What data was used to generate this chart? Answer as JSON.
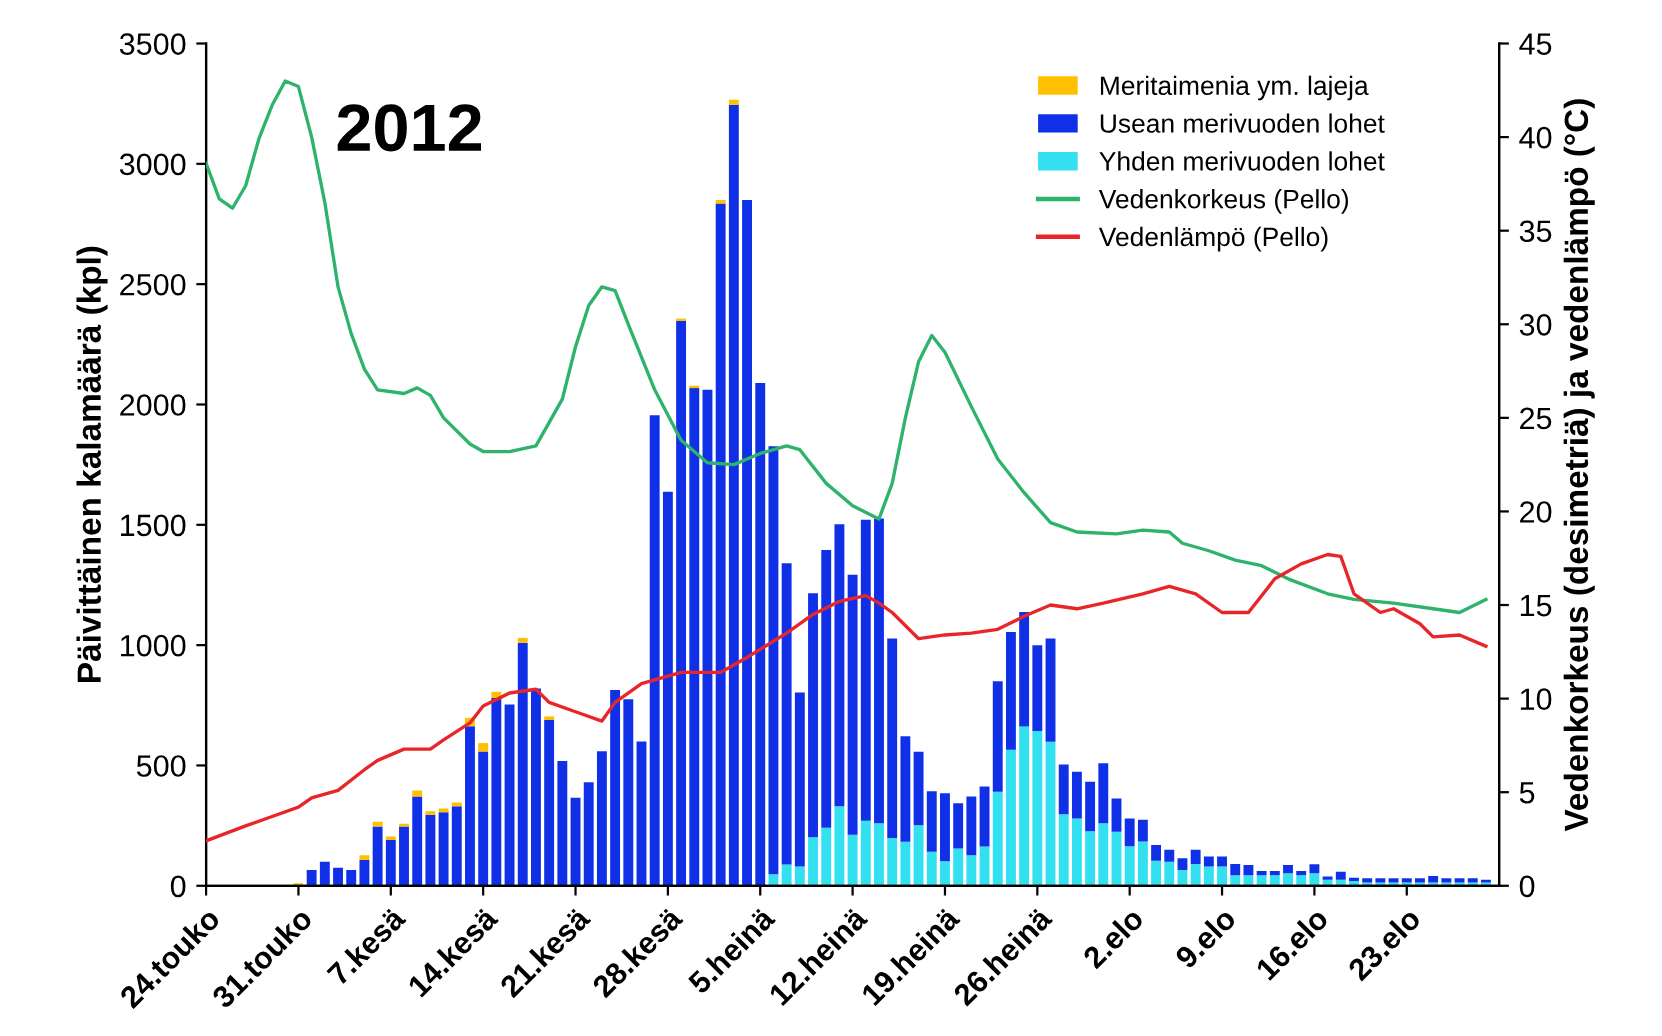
{
  "chart_data": {
    "type": "bar",
    "stacked": true,
    "title": "2012",
    "ylabel": "Päivittäinen kalamäärä (kpl)",
    "y2label": "Vedenkorkeus (desimetriä) ja vedenlämpö (°C)",
    "x": [
      "2012-05-24",
      "2012-05-25",
      "2012-05-26",
      "2012-05-27",
      "2012-05-28",
      "2012-05-29",
      "2012-05-30",
      "2012-05-31",
      "2012-06-01",
      "2012-06-02",
      "2012-06-03",
      "2012-06-04",
      "2012-06-05",
      "2012-06-06",
      "2012-06-07",
      "2012-06-08",
      "2012-06-09",
      "2012-06-10",
      "2012-06-11",
      "2012-06-12",
      "2012-06-13",
      "2012-06-14",
      "2012-06-15",
      "2012-06-16",
      "2012-06-17",
      "2012-06-18",
      "2012-06-19",
      "2012-06-20",
      "2012-06-21",
      "2012-06-22",
      "2012-06-23",
      "2012-06-24",
      "2012-06-25",
      "2012-06-26",
      "2012-06-27",
      "2012-06-28",
      "2012-06-29",
      "2012-06-30",
      "2012-07-01",
      "2012-07-02",
      "2012-07-03",
      "2012-07-04",
      "2012-07-05",
      "2012-07-06",
      "2012-07-07",
      "2012-07-08",
      "2012-07-09",
      "2012-07-10",
      "2012-07-11",
      "2012-07-12",
      "2012-07-13",
      "2012-07-14",
      "2012-07-15",
      "2012-07-16",
      "2012-07-17",
      "2012-07-18",
      "2012-07-19",
      "2012-07-20",
      "2012-07-21",
      "2012-07-22",
      "2012-07-23",
      "2012-07-24",
      "2012-07-25",
      "2012-07-26",
      "2012-07-27",
      "2012-07-28",
      "2012-07-29",
      "2012-07-30",
      "2012-07-31",
      "2012-08-01",
      "2012-08-02",
      "2012-08-03",
      "2012-08-04",
      "2012-08-05",
      "2012-08-06",
      "2012-08-07",
      "2012-08-08",
      "2012-08-09",
      "2012-08-10",
      "2012-08-11",
      "2012-08-12",
      "2012-08-13",
      "2012-08-14",
      "2012-08-15",
      "2012-08-16",
      "2012-08-17",
      "2012-08-18",
      "2012-08-19",
      "2012-08-20",
      "2012-08-21",
      "2012-08-22",
      "2012-08-23",
      "2012-08-24",
      "2012-08-25",
      "2012-08-26",
      "2012-08-27",
      "2012-08-28",
      "2012-08-29"
    ],
    "series": [
      {
        "name": "Yhden merivuoden lohet",
        "color": "#33e0f0",
        "values": [
          0,
          0,
          0,
          0,
          0,
          0,
          0,
          0,
          0,
          0,
          0,
          0,
          0,
          0,
          0,
          0,
          0,
          0,
          0,
          0,
          0,
          0,
          0,
          0,
          0,
          0,
          0,
          0,
          0,
          0,
          0,
          0,
          0,
          0,
          0,
          0,
          0,
          0,
          0,
          0,
          0,
          0,
          0,
          48,
          88,
          80,
          202,
          241,
          330,
          212,
          270,
          260,
          199,
          183,
          252,
          141,
          102,
          155,
          127,
          163,
          391,
          565,
          662,
          643,
          598,
          297,
          280,
          227,
          260,
          225,
          164,
          184,
          104,
          100,
          66,
          91,
          80,
          80,
          44,
          44,
          44,
          44,
          52,
          44,
          52,
          25,
          25,
          20,
          14,
          14,
          14,
          14,
          14,
          14,
          14,
          14,
          14,
          14
        ]
      },
      {
        "name": "Usean merivuoden lohet",
        "color": "#1030e8",
        "values": [
          0,
          0,
          0,
          0,
          0,
          0,
          0,
          0,
          66,
          100,
          75,
          66,
          107,
          246,
          190,
          246,
          371,
          295,
          306,
          331,
          663,
          558,
          781,
          753,
          1010,
          820,
          689,
          518,
          366,
          430,
          559,
          814,
          775,
          600,
          1955,
          1637,
          2347,
          2068,
          2061,
          2835,
          3246,
          2850,
          2089,
          1778,
          1252,
          723,
          1014,
          1154,
          1172,
          1080,
          1251,
          1266,
          829,
          438,
          305,
          252,
          283,
          188,
          244,
          250,
          459,
          490,
          476,
          357,
          430,
          207,
          194,
          205,
          249,
          138,
          116,
          90,
          65,
          50,
          48,
          59,
          42,
          42,
          47,
          42,
          17,
          17,
          34,
          17,
          37,
          14,
          33,
          13,
          17,
          17,
          17,
          17,
          17,
          27,
          17,
          17,
          17,
          11
        ]
      },
      {
        "name": "Meritaimenia ym. lajeja",
        "color": "#ffc000",
        "values": [
          0,
          0,
          0,
          0,
          0,
          0,
          0,
          10,
          0,
          0,
          0,
          0,
          20,
          20,
          15,
          12,
          25,
          15,
          15,
          15,
          35,
          35,
          25,
          0,
          20,
          0,
          15,
          0,
          0,
          0,
          0,
          0,
          0,
          0,
          0,
          0,
          10,
          10,
          0,
          15,
          20,
          0,
          0,
          0,
          0,
          0,
          0,
          0,
          0,
          0,
          0,
          0,
          0,
          0,
          0,
          0,
          0,
          0,
          0,
          0,
          0,
          0,
          0,
          0,
          0,
          0,
          0,
          0,
          0,
          0,
          0,
          0,
          0,
          0,
          0,
          0,
          0,
          0,
          0,
          0,
          0,
          0,
          0,
          0,
          0,
          0,
          0,
          0,
          0,
          0,
          0,
          0,
          0,
          0,
          0,
          0,
          0,
          0
        ]
      },
      {
        "name": "Vedenkorkeus (Pello)",
        "type": "line",
        "axis": "y2",
        "color": "#2db36b",
        "x": [
          "2012-05-24",
          "2012-05-25",
          "2012-05-26",
          "2012-05-27",
          "2012-05-28",
          "2012-05-29",
          "2012-05-30",
          "2012-05-31",
          "2012-06-01",
          "2012-06-02",
          "2012-06-03",
          "2012-06-04",
          "2012-06-05",
          "2012-06-06",
          "2012-06-08",
          "2012-06-09",
          "2012-06-10",
          "2012-06-11",
          "2012-06-13",
          "2012-06-14",
          "2012-06-16",
          "2012-06-18",
          "2012-06-20",
          "2012-06-21",
          "2012-06-22",
          "2012-06-23",
          "2012-06-24",
          "2012-06-25",
          "2012-06-27",
          "2012-06-29",
          "2012-07-01",
          "2012-07-03",
          "2012-07-05",
          "2012-07-07",
          "2012-07-08",
          "2012-07-10",
          "2012-07-12",
          "2012-07-14",
          "2012-07-15",
          "2012-07-16",
          "2012-07-17",
          "2012-07-18",
          "2012-07-19",
          "2012-07-21",
          "2012-07-23",
          "2012-07-25",
          "2012-07-27",
          "2012-07-29",
          "2012-08-01",
          "2012-08-03",
          "2012-08-05",
          "2012-08-06",
          "2012-08-08",
          "2012-08-10",
          "2012-08-12",
          "2012-08-14",
          "2012-08-17",
          "2012-08-19",
          "2012-08-22",
          "2012-08-25",
          "2012-08-27",
          "2012-08-29"
        ],
        "values": [
          38.6,
          36.7,
          36.2,
          37.4,
          39.9,
          41.7,
          43.0,
          42.7,
          40.0,
          36.5,
          32.0,
          29.5,
          27.6,
          26.5,
          26.3,
          26.6,
          26.2,
          25.0,
          23.6,
          23.2,
          23.2,
          23.5,
          26.0,
          28.8,
          31.0,
          32.0,
          31.8,
          30.0,
          26.5,
          23.8,
          22.6,
          22.5,
          23.1,
          23.5,
          23.3,
          21.5,
          20.3,
          19.6,
          21.5,
          25.0,
          28.0,
          29.4,
          28.5,
          25.6,
          22.8,
          21.0,
          19.4,
          18.9,
          18.8,
          19.0,
          18.9,
          18.3,
          17.9,
          17.4,
          17.1,
          16.4,
          15.6,
          15.3,
          15.1,
          14.8,
          14.6,
          15.3
        ]
      },
      {
        "name": "Vedenlämpö (Pello)",
        "type": "line",
        "axis": "y2",
        "color": "#e8262a",
        "x": [
          "2012-05-24",
          "2012-05-27",
          "2012-05-29",
          "2012-05-31",
          "2012-06-01",
          "2012-06-03",
          "2012-06-05",
          "2012-06-06",
          "2012-06-08",
          "2012-06-10",
          "2012-06-11",
          "2012-06-13",
          "2012-06-14",
          "2012-06-16",
          "2012-06-18",
          "2012-06-19",
          "2012-06-21",
          "2012-06-23",
          "2012-06-24",
          "2012-06-26",
          "2012-06-27",
          "2012-06-29",
          "2012-07-02",
          "2012-07-04",
          "2012-07-07",
          "2012-07-09",
          "2012-07-11",
          "2012-07-13",
          "2012-07-14",
          "2012-07-15",
          "2012-07-17",
          "2012-07-19",
          "2012-07-21",
          "2012-07-23",
          "2012-07-25",
          "2012-07-27",
          "2012-07-29",
          "2012-07-31",
          "2012-08-03",
          "2012-08-05",
          "2012-08-07",
          "2012-08-09",
          "2012-08-11",
          "2012-08-13",
          "2012-08-15",
          "2012-08-17",
          "2012-08-18",
          "2012-08-19",
          "2012-08-21",
          "2012-08-22",
          "2012-08-24",
          "2012-08-25",
          "2012-08-27",
          "2012-08-29"
        ],
        "values": [
          2.4,
          3.2,
          3.7,
          4.2,
          4.7,
          5.1,
          6.2,
          6.7,
          7.3,
          7.3,
          7.8,
          8.7,
          9.6,
          10.3,
          10.5,
          9.8,
          9.3,
          8.8,
          9.8,
          10.8,
          11.0,
          11.4,
          11.4,
          12.2,
          13.5,
          14.5,
          15.2,
          15.5,
          15.1,
          14.6,
          13.2,
          13.4,
          13.5,
          13.7,
          14.4,
          15.0,
          14.8,
          15.1,
          15.6,
          16.0,
          15.6,
          14.6,
          14.6,
          16.4,
          17.2,
          17.7,
          17.6,
          15.6,
          14.6,
          14.8,
          14.0,
          13.3,
          13.4,
          12.8
        ]
      }
    ],
    "xlim": [
      "2012-05-24",
      "2012-08-30"
    ],
    "xticks": [
      {
        "value": "2012-05-24",
        "label": "24.touko"
      },
      {
        "value": "2012-05-31",
        "label": "31.touko"
      },
      {
        "value": "2012-06-07",
        "label": "7.kesä"
      },
      {
        "value": "2012-06-14",
        "label": "14.kesä"
      },
      {
        "value": "2012-06-21",
        "label": "21.kesä"
      },
      {
        "value": "2012-06-28",
        "label": "28.kesä"
      },
      {
        "value": "2012-07-05",
        "label": "5.heinä"
      },
      {
        "value": "2012-07-12",
        "label": "12.heinä"
      },
      {
        "value": "2012-07-19",
        "label": "19.heinä"
      },
      {
        "value": "2012-07-26",
        "label": "26.heinä"
      },
      {
        "value": "2012-08-02",
        "label": "2.elo"
      },
      {
        "value": "2012-08-09",
        "label": "9.elo"
      },
      {
        "value": "2012-08-16",
        "label": "16.elo"
      },
      {
        "value": "2012-08-23",
        "label": "23.elo"
      }
    ],
    "ylim": [
      0,
      3500
    ],
    "yticks": [
      0,
      500,
      1000,
      1500,
      2000,
      2500,
      3000,
      3500
    ],
    "y2lim": [
      0,
      45
    ],
    "y2ticks": [
      0,
      5,
      10,
      15,
      20,
      25,
      30,
      35,
      40,
      45
    ],
    "grid": false,
    "legend": "top right"
  }
}
